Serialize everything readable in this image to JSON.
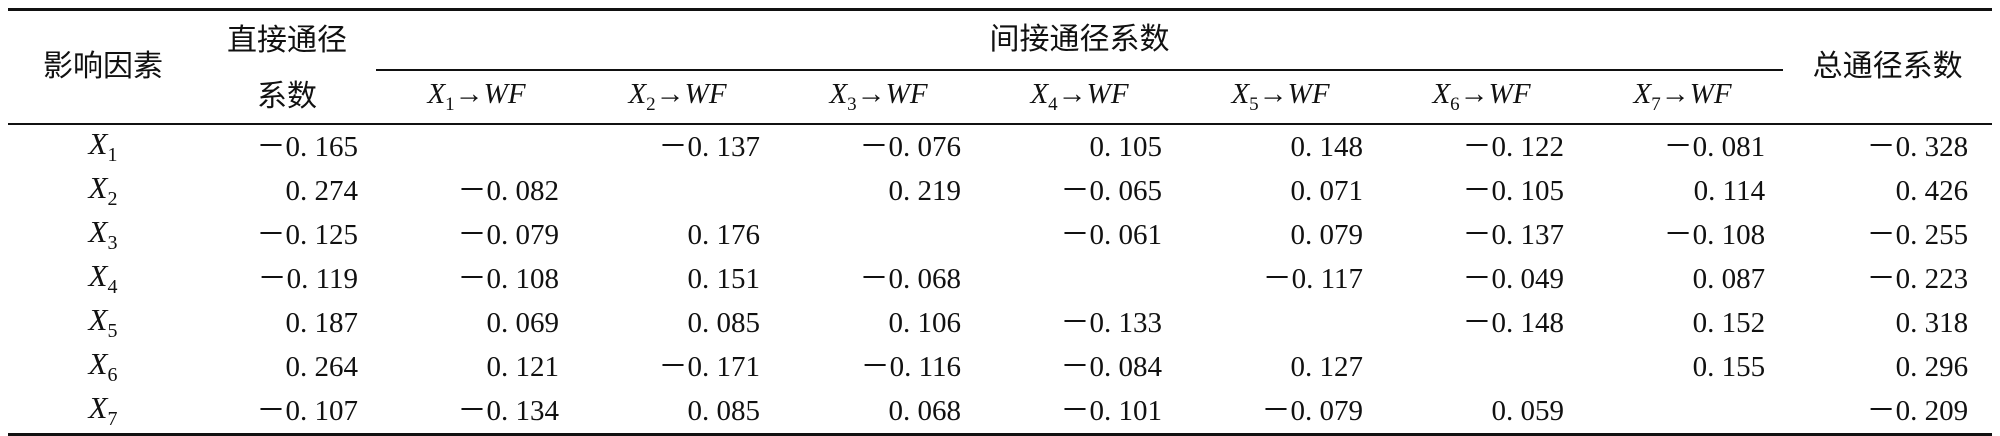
{
  "table": {
    "headers": {
      "factor": "影响因素",
      "direct_line1": "直接通径",
      "direct_line2": "系数",
      "indirect": "间接通径系数",
      "total": "总通径系数",
      "subcols": [
        {
          "var": "X",
          "sub": "1",
          "arrow": "→WF"
        },
        {
          "var": "X",
          "sub": "2",
          "arrow": "→WF"
        },
        {
          "var": "X",
          "sub": "3",
          "arrow": "→WF"
        },
        {
          "var": "X",
          "sub": "4",
          "arrow": "→WF"
        },
        {
          "var": "X",
          "sub": "5",
          "arrow": "→WF"
        },
        {
          "var": "X",
          "sub": "6",
          "arrow": "→WF"
        },
        {
          "var": "X",
          "sub": "7",
          "arrow": "→WF"
        }
      ]
    },
    "rows": [
      {
        "var": "X",
        "sub": "1",
        "direct": "－0. 165",
        "indirect": [
          "",
          "－0. 137",
          "－0. 076",
          "0. 105",
          "0. 148",
          "－0. 122",
          "－0. 081"
        ],
        "total": "－0. 328"
      },
      {
        "var": "X",
        "sub": "2",
        "direct": "0. 274",
        "indirect": [
          "－0. 082",
          "",
          "0. 219",
          "－0. 065",
          "0. 071",
          "－0. 105",
          "0. 114"
        ],
        "total": "0. 426"
      },
      {
        "var": "X",
        "sub": "3",
        "direct": "－0. 125",
        "indirect": [
          "－0. 079",
          "0. 176",
          "",
          "－0. 061",
          "0. 079",
          "－0. 137",
          "－0. 108"
        ],
        "total": "－0. 255"
      },
      {
        "var": "X",
        "sub": "4",
        "direct": "－0. 119",
        "indirect": [
          "－0. 108",
          "0. 151",
          "－0. 068",
          "",
          "－0. 117",
          "－0. 049",
          "0. 087"
        ],
        "total": "－0. 223"
      },
      {
        "var": "X",
        "sub": "5",
        "direct": "0. 187",
        "indirect": [
          "0. 069",
          "0. 085",
          "0. 106",
          "－0. 133",
          "",
          "－0. 148",
          "0. 152"
        ],
        "total": "0. 318"
      },
      {
        "var": "X",
        "sub": "6",
        "direct": "0. 264",
        "indirect": [
          "0. 121",
          "－0. 171",
          "－0. 116",
          "－0. 084",
          "0. 127",
          "",
          "0. 155"
        ],
        "total": "0. 296"
      },
      {
        "var": "X",
        "sub": "7",
        "direct": "－0. 107",
        "indirect": [
          "－0. 134",
          "0. 085",
          "0. 068",
          "－0. 101",
          "－0. 079",
          "0. 059",
          ""
        ],
        "total": "－0. 209"
      }
    ]
  }
}
